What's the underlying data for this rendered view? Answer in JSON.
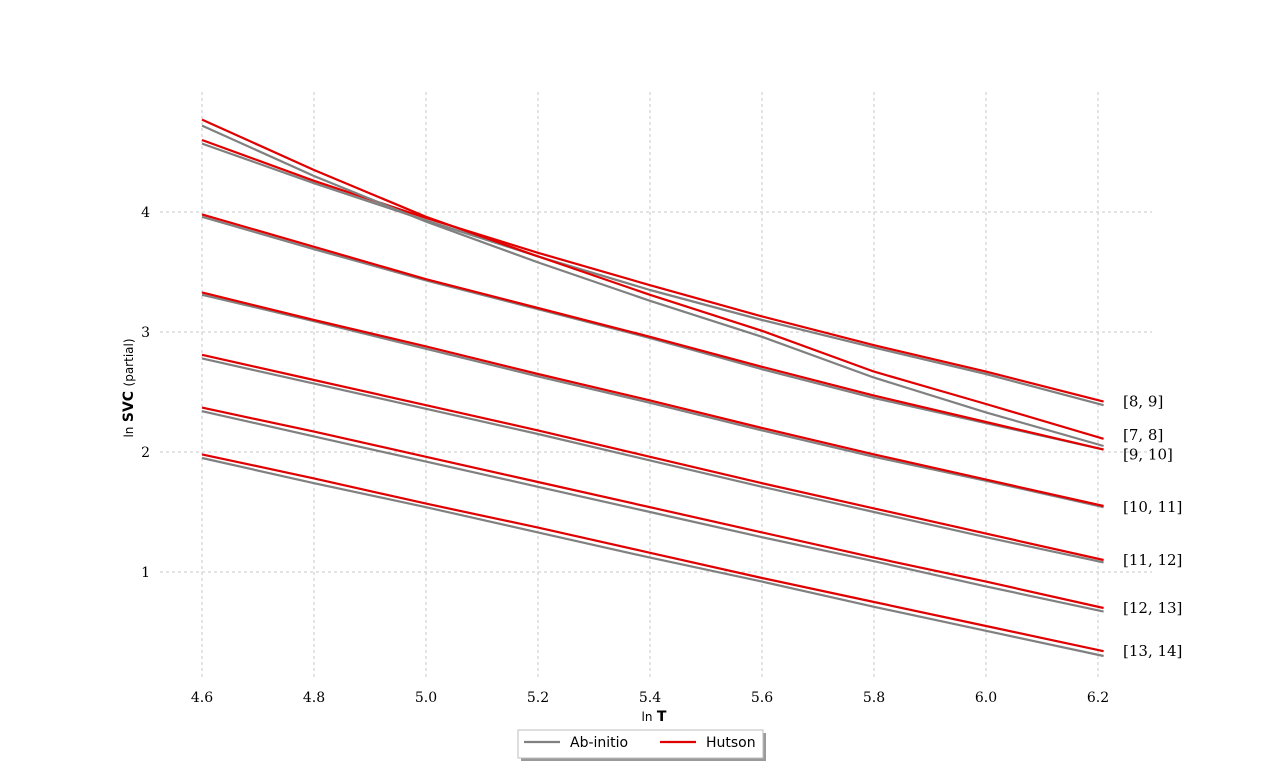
{
  "chart_data": {
    "type": "line",
    "xlabel": {
      "prefix": "ln",
      "bold": "T"
    },
    "ylabel": {
      "prefix": "ln",
      "bold": "SVC",
      "suffix": "(partial)"
    },
    "xlim": [
      4.6,
      6.21
    ],
    "ylim": [
      0.3,
      4.8
    ],
    "xticks": [
      "4.6",
      "4.8",
      "5.0",
      "5.2",
      "5.4",
      "5.6",
      "5.8",
      "6.0",
      "6.2"
    ],
    "yticks": [
      "1",
      "2",
      "3",
      "4"
    ],
    "grid": true,
    "legend_position": "bottom-center",
    "legend": [
      {
        "name": "Ab-initio",
        "color": "#808080"
      },
      {
        "name": "Hutson",
        "color": "#e00000"
      }
    ],
    "x": [
      4.6,
      4.8,
      5.0,
      5.2,
      5.4,
      5.6,
      5.8,
      6.0,
      6.21
    ],
    "series": [
      {
        "label": "[8, 9]",
        "abinitio": [
          4.57,
          4.24,
          3.93,
          3.63,
          3.35,
          3.1,
          2.87,
          2.65,
          2.39
        ],
        "hutson": [
          4.6,
          4.26,
          3.95,
          3.66,
          3.39,
          3.13,
          2.89,
          2.67,
          2.42
        ]
      },
      {
        "label": "[7, 8]",
        "abinitio": [
          4.72,
          4.3,
          3.92,
          3.58,
          3.26,
          2.96,
          2.62,
          2.33,
          2.05
        ],
        "hutson": [
          4.77,
          4.35,
          3.96,
          3.63,
          3.31,
          3.01,
          2.67,
          2.4,
          2.11
        ]
      },
      {
        "label": "[9, 10]",
        "abinitio": [
          3.96,
          3.69,
          3.43,
          3.19,
          2.95,
          2.69,
          2.45,
          2.24,
          2.02
        ],
        "hutson": [
          3.98,
          3.71,
          3.44,
          3.2,
          2.96,
          2.71,
          2.47,
          2.25,
          2.02
        ]
      },
      {
        "label": "[10, 11]",
        "abinitio": [
          3.31,
          3.09,
          2.86,
          2.63,
          2.41,
          2.18,
          1.96,
          1.76,
          1.54
        ],
        "hutson": [
          3.33,
          3.1,
          2.88,
          2.65,
          2.43,
          2.2,
          1.98,
          1.77,
          1.55
        ]
      },
      {
        "label": "[11, 12]",
        "abinitio": [
          2.78,
          2.57,
          2.36,
          2.15,
          1.93,
          1.71,
          1.5,
          1.29,
          1.08
        ],
        "hutson": [
          2.81,
          2.6,
          2.39,
          2.18,
          1.96,
          1.74,
          1.53,
          1.32,
          1.1
        ]
      },
      {
        "label": "[12, 13]",
        "abinitio": [
          2.34,
          2.13,
          1.92,
          1.71,
          1.5,
          1.29,
          1.09,
          0.88,
          0.67
        ],
        "hutson": [
          2.37,
          2.17,
          1.96,
          1.75,
          1.54,
          1.33,
          1.12,
          0.92,
          0.7
        ]
      },
      {
        "label": "[13, 14]",
        "abinitio": [
          1.95,
          1.74,
          1.54,
          1.33,
          1.12,
          0.92,
          0.71,
          0.51,
          0.3
        ],
        "hutson": [
          1.98,
          1.78,
          1.57,
          1.37,
          1.16,
          0.95,
          0.75,
          0.55,
          0.34
        ]
      }
    ],
    "label_y": [
      2.42,
      2.14,
      1.98,
      1.54,
      1.1,
      0.7,
      0.34
    ]
  }
}
